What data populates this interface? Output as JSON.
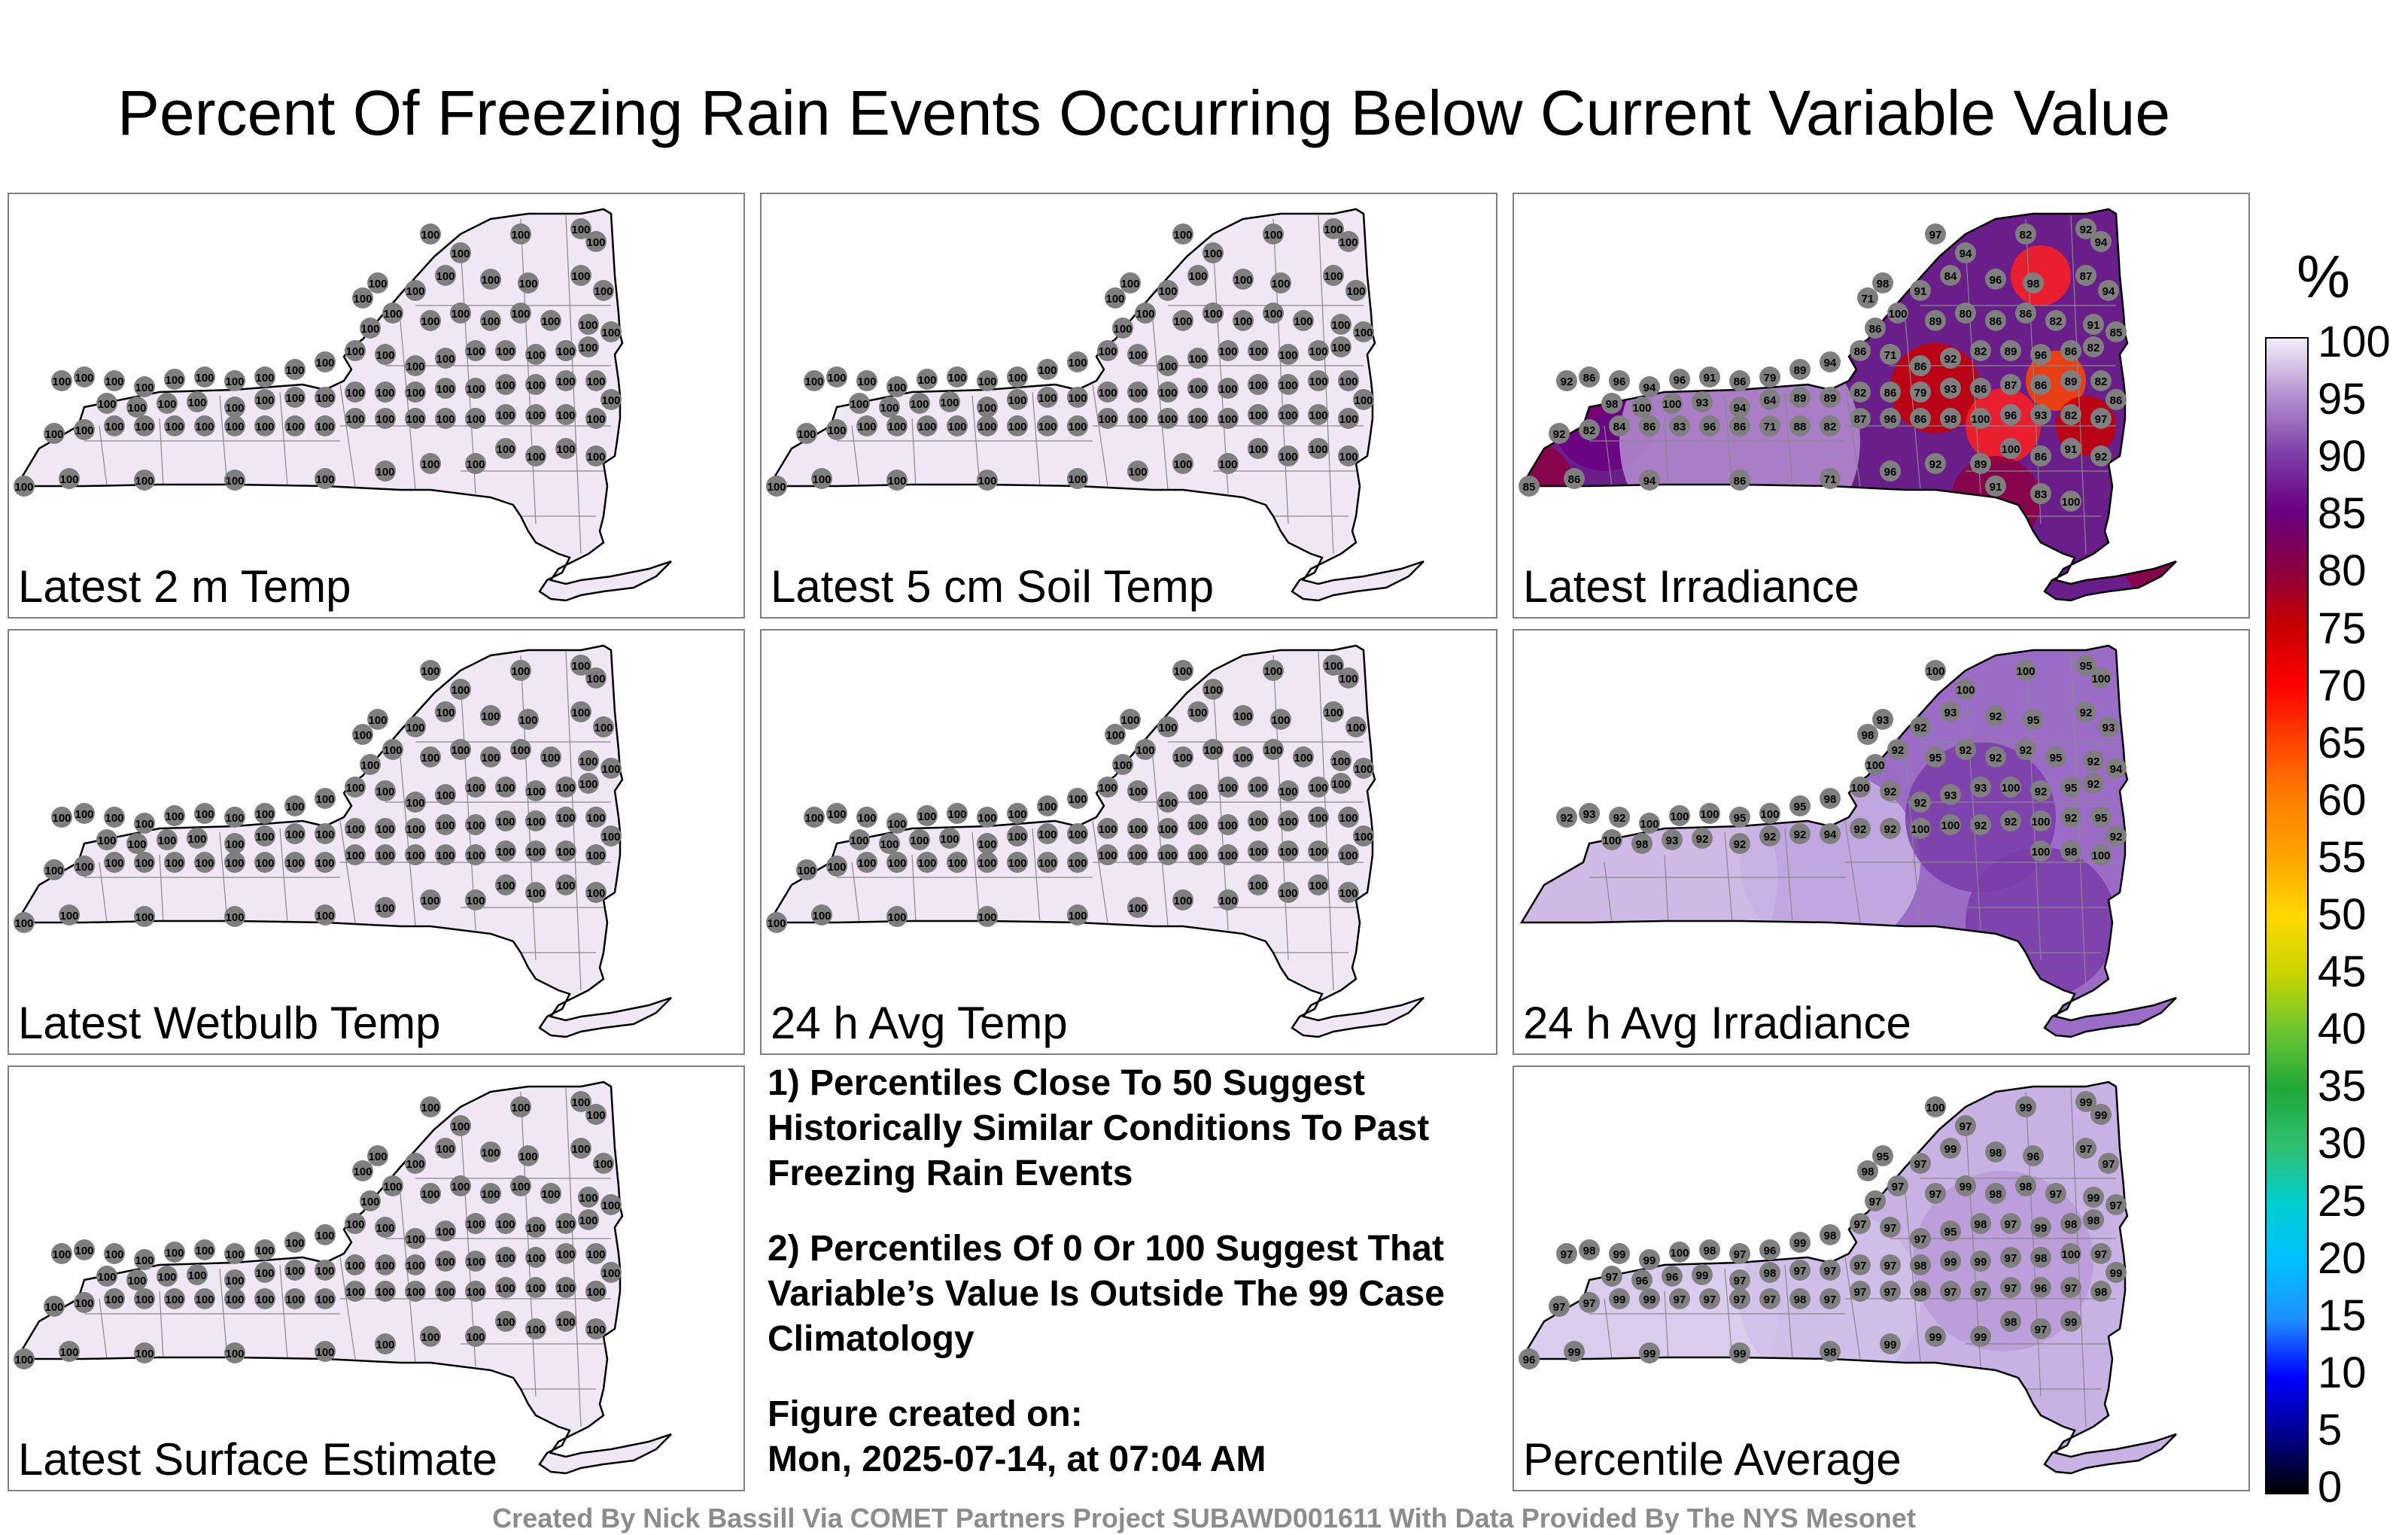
{
  "title": "Percent Of Freezing Rain Events Occurring Below Current Variable Value",
  "colorbar": {
    "unit": "%",
    "ticks": [
      "100",
      "95",
      "90",
      "85",
      "80",
      "75",
      "70",
      "65",
      "60",
      "55",
      "50",
      "45",
      "40",
      "35",
      "30",
      "25",
      "20",
      "15",
      "10",
      "5",
      "0"
    ],
    "stops": [
      "#000000",
      "#00008b",
      "#0000ff",
      "#1e90ff",
      "#00bfff",
      "#00ced1",
      "#2fbf71",
      "#1fa83a",
      "#6cc431",
      "#c8d400",
      "#ffd800",
      "#ffa500",
      "#ff7f00",
      "#ff4500",
      "#ff0000",
      "#c80000",
      "#8b0040",
      "#6a0080",
      "#7e3fa8",
      "#b48fd0",
      "#f2eef8"
    ]
  },
  "panels": [
    {
      "label": "Latest 2 m Temp",
      "mode": "uniform",
      "stations": [
        "100"
      ]
    },
    {
      "label": "Latest 5 cm Soil Temp",
      "mode": "uniform",
      "stations": [
        "100"
      ]
    },
    {
      "label": "Latest Irradiance",
      "mode": "irradiance",
      "stations": [
        "97",
        "94",
        "82",
        "92",
        "94",
        "98",
        "71",
        "91",
        "84",
        "96",
        "98",
        "87",
        "94",
        "86",
        "100",
        "89",
        "80",
        "86",
        "86",
        "82",
        "91",
        "85",
        "82",
        "86",
        "96",
        "89",
        "82",
        "92",
        "86",
        "71",
        "86",
        "94",
        "89",
        "79",
        "86",
        "91",
        "96",
        "94",
        "96",
        "86",
        "92",
        "98",
        "100",
        "100",
        "93",
        "94",
        "64",
        "89",
        "89",
        "82",
        "86",
        "79",
        "93",
        "86",
        "87",
        "86",
        "89",
        "82",
        "86",
        "97",
        "82",
        "93",
        "96",
        "100",
        "98",
        "86",
        "96",
        "87",
        "82",
        "88",
        "71",
        "86",
        "96",
        "83",
        "86",
        "84",
        "82",
        "92",
        "85",
        "86",
        "94",
        "86",
        "71",
        "96",
        "92",
        "89",
        "100",
        "86",
        "91",
        "92",
        "91",
        "83",
        "100"
      ]
    },
    {
      "label": "Latest Wetbulb Temp",
      "mode": "uniform",
      "stations": [
        "100"
      ]
    },
    {
      "label": "24 h Avg Temp",
      "mode": "uniform",
      "stations": [
        "100"
      ]
    },
    {
      "label": "24 h Avg Irradiance",
      "mode": "avg-irradiance",
      "stations": [
        "100",
        "100",
        "100",
        "95",
        "100",
        "93",
        "98",
        "92",
        "93",
        "92",
        "95",
        "92",
        "93",
        "100",
        "92",
        "95",
        "92",
        "92",
        "92",
        "95",
        "92",
        "94",
        "92",
        "95",
        "92",
        "100",
        "93",
        "93",
        "92",
        "92",
        "100",
        "98",
        "95",
        "100",
        "95",
        "100",
        "100",
        "100",
        "92",
        "93",
        "92",
        "100",
        "98",
        "93",
        "92",
        "92",
        "92",
        "92",
        "94",
        "92",
        "92",
        "100",
        "100",
        "92",
        "92",
        "100",
        "92",
        "95",
        "92",
        "100",
        "98",
        "100"
      ]
    },
    {
      "label": "Latest Surface Estimate",
      "mode": "uniform",
      "stations": [
        "100"
      ]
    },
    {
      "label": "Percentile Average",
      "mode": "avg",
      "stations": [
        "100",
        "97",
        "99",
        "99",
        "99",
        "95",
        "98",
        "97",
        "99",
        "98",
        "96",
        "97",
        "97",
        "97",
        "97",
        "97",
        "99",
        "98",
        "98",
        "97",
        "99",
        "97",
        "98",
        "98",
        "99",
        "97",
        "98",
        "95",
        "97",
        "97",
        "97",
        "98",
        "99",
        "96",
        "97",
        "98",
        "100",
        "99",
        "99",
        "98",
        "97",
        "97",
        "96",
        "96",
        "99",
        "97",
        "98",
        "97",
        "97",
        "97",
        "97",
        "98",
        "99",
        "99",
        "97",
        "98",
        "100",
        "97",
        "99",
        "98",
        "97",
        "96",
        "97",
        "97",
        "97",
        "98",
        "97",
        "97",
        "97",
        "98",
        "97",
        "97",
        "97",
        "97",
        "99",
        "99",
        "97",
        "97",
        "96",
        "99",
        "99",
        "99",
        "98",
        "99",
        "99",
        "99",
        "98",
        "97",
        "99"
      ]
    }
  ],
  "notes": [
    "1) Percentiles Close To 50 Suggest Historically Similar Conditions To Past Freezing Rain Events",
    "2) Percentiles Of 0 Or 100 Suggest That Variable’s Value Is Outside The 99 Case Climatology",
    "Figure created on:\nMon, 2025-07-14, at 07:04 AM"
  ],
  "credit": "Created By Nick Bassill Via COMET Partners Project SUBAWD001611 With Data Provided By The NYS Mesonet"
}
